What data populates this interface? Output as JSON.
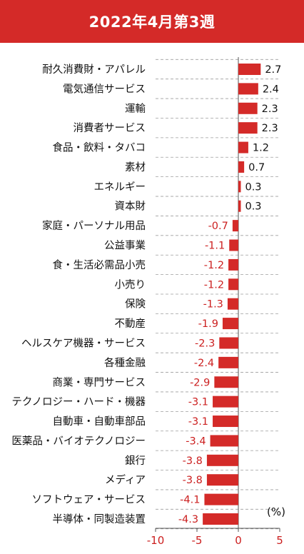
{
  "header": {
    "title": "2022年4月第3週"
  },
  "colors": {
    "header_bg": "#d42a28",
    "bar": "#d42a28",
    "negative_text": "#cc1f1f",
    "grid": "#9e9e9e"
  },
  "chart_data": {
    "type": "bar",
    "orientation": "horizontal",
    "unit": "(%)",
    "categories": [
      "耐久消費財・アパレル",
      "電気通信サービス",
      "運輸",
      "消費者サービス",
      "食品・飲料・タバコ",
      "素材",
      "エネルギー",
      "資本財",
      "家庭・パーソナル用品",
      "公益事業",
      "食・生活必需品小売",
      "小売り",
      "保険",
      "不動産",
      "ヘルスケア機器・サービス",
      "各種金融",
      "商業・専門サービス",
      "テクノロジー・ハード・機器",
      "自動車・自動車部品",
      "医薬品・バイオテクノロジー",
      "銀行",
      "メディア",
      "ソフトウェア・サービス",
      "半導体・同製造装置"
    ],
    "values": [
      2.7,
      2.4,
      2.3,
      2.3,
      1.2,
      0.7,
      0.3,
      0.3,
      -0.7,
      -1.1,
      -1.2,
      -1.2,
      -1.3,
      -1.9,
      -2.3,
      -2.4,
      -2.9,
      -3.1,
      -3.1,
      -3.4,
      -3.8,
      -3.8,
      -4.1,
      -4.3
    ],
    "value_labels": [
      "2.7",
      "2.4",
      "2.3",
      "2.3",
      "1.2",
      "0.7",
      "0.3",
      "0.3",
      "-0.7",
      "-1.1",
      "-1.2",
      "-1.2",
      "-1.3",
      "-1.9",
      "-2.3",
      "-2.4",
      "-2.9",
      "-3.1",
      "-3.1",
      "-3.4",
      "-3.8",
      "-3.8",
      "-4.1",
      "-4.3"
    ],
    "xlim": [
      -10,
      5
    ],
    "x_ticks": [
      -10,
      -5,
      0,
      5
    ],
    "x_tick_labels": [
      "-10",
      "-5",
      "0",
      "5"
    ],
    "grid": "horizontal dashed",
    "legend": "none"
  }
}
